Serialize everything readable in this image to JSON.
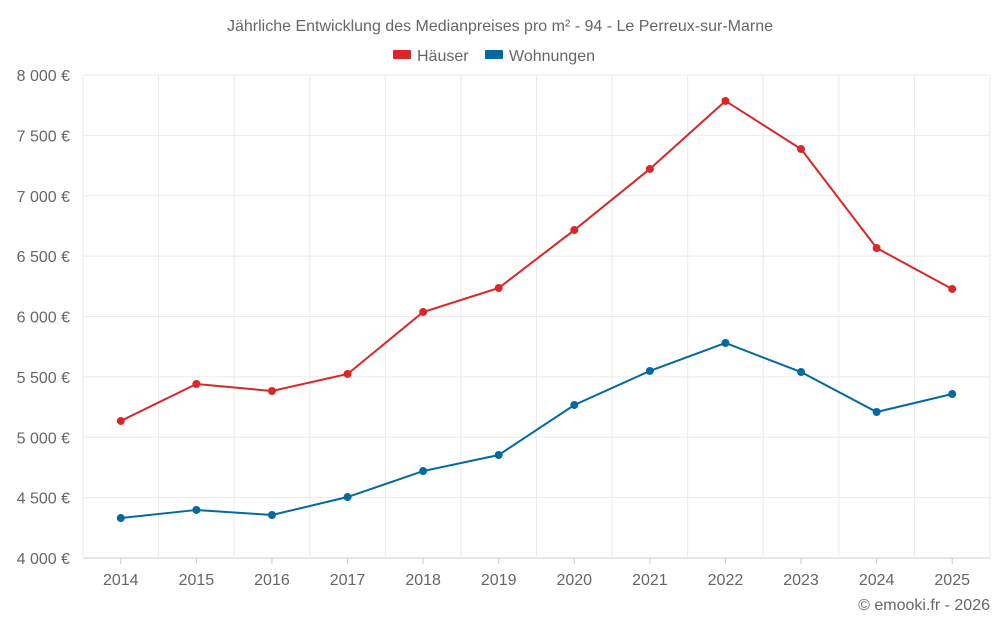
{
  "chart_data": {
    "type": "line",
    "title": "Jährliche Entwicklung des Medianpreises pro m² - 94 - Le Perreux-sur-Marne",
    "xlabel": "",
    "ylabel": "",
    "categories": [
      "2014",
      "2015",
      "2016",
      "2017",
      "2018",
      "2019",
      "2020",
      "2021",
      "2022",
      "2023",
      "2024",
      "2025"
    ],
    "ylim": [
      4000,
      8000
    ],
    "yticks": [
      4000,
      4500,
      5000,
      5500,
      6000,
      6500,
      7000,
      7500,
      8000
    ],
    "ytick_labels": [
      "4 000 €",
      "4 500 €",
      "5 000 €",
      "5 500 €",
      "6 000 €",
      "6 500 €",
      "7 000 €",
      "7 500 €",
      "8 000 €"
    ],
    "grid": true,
    "legend_position": "top-center",
    "series": [
      {
        "name": "Häuser",
        "color": "#dc2626",
        "values": [
          5135,
          5441,
          5383,
          5524,
          6037,
          6236,
          6716,
          7222,
          7785,
          7387,
          6567,
          6228
        ]
      },
      {
        "name": "Wohnungen",
        "color": "#0369a1",
        "values": [
          4331,
          4398,
          4356,
          4505,
          4720,
          4853,
          5267,
          5549,
          5781,
          5540,
          5209,
          5358
        ]
      }
    ]
  },
  "credit": "© emooki.fr - 2026"
}
